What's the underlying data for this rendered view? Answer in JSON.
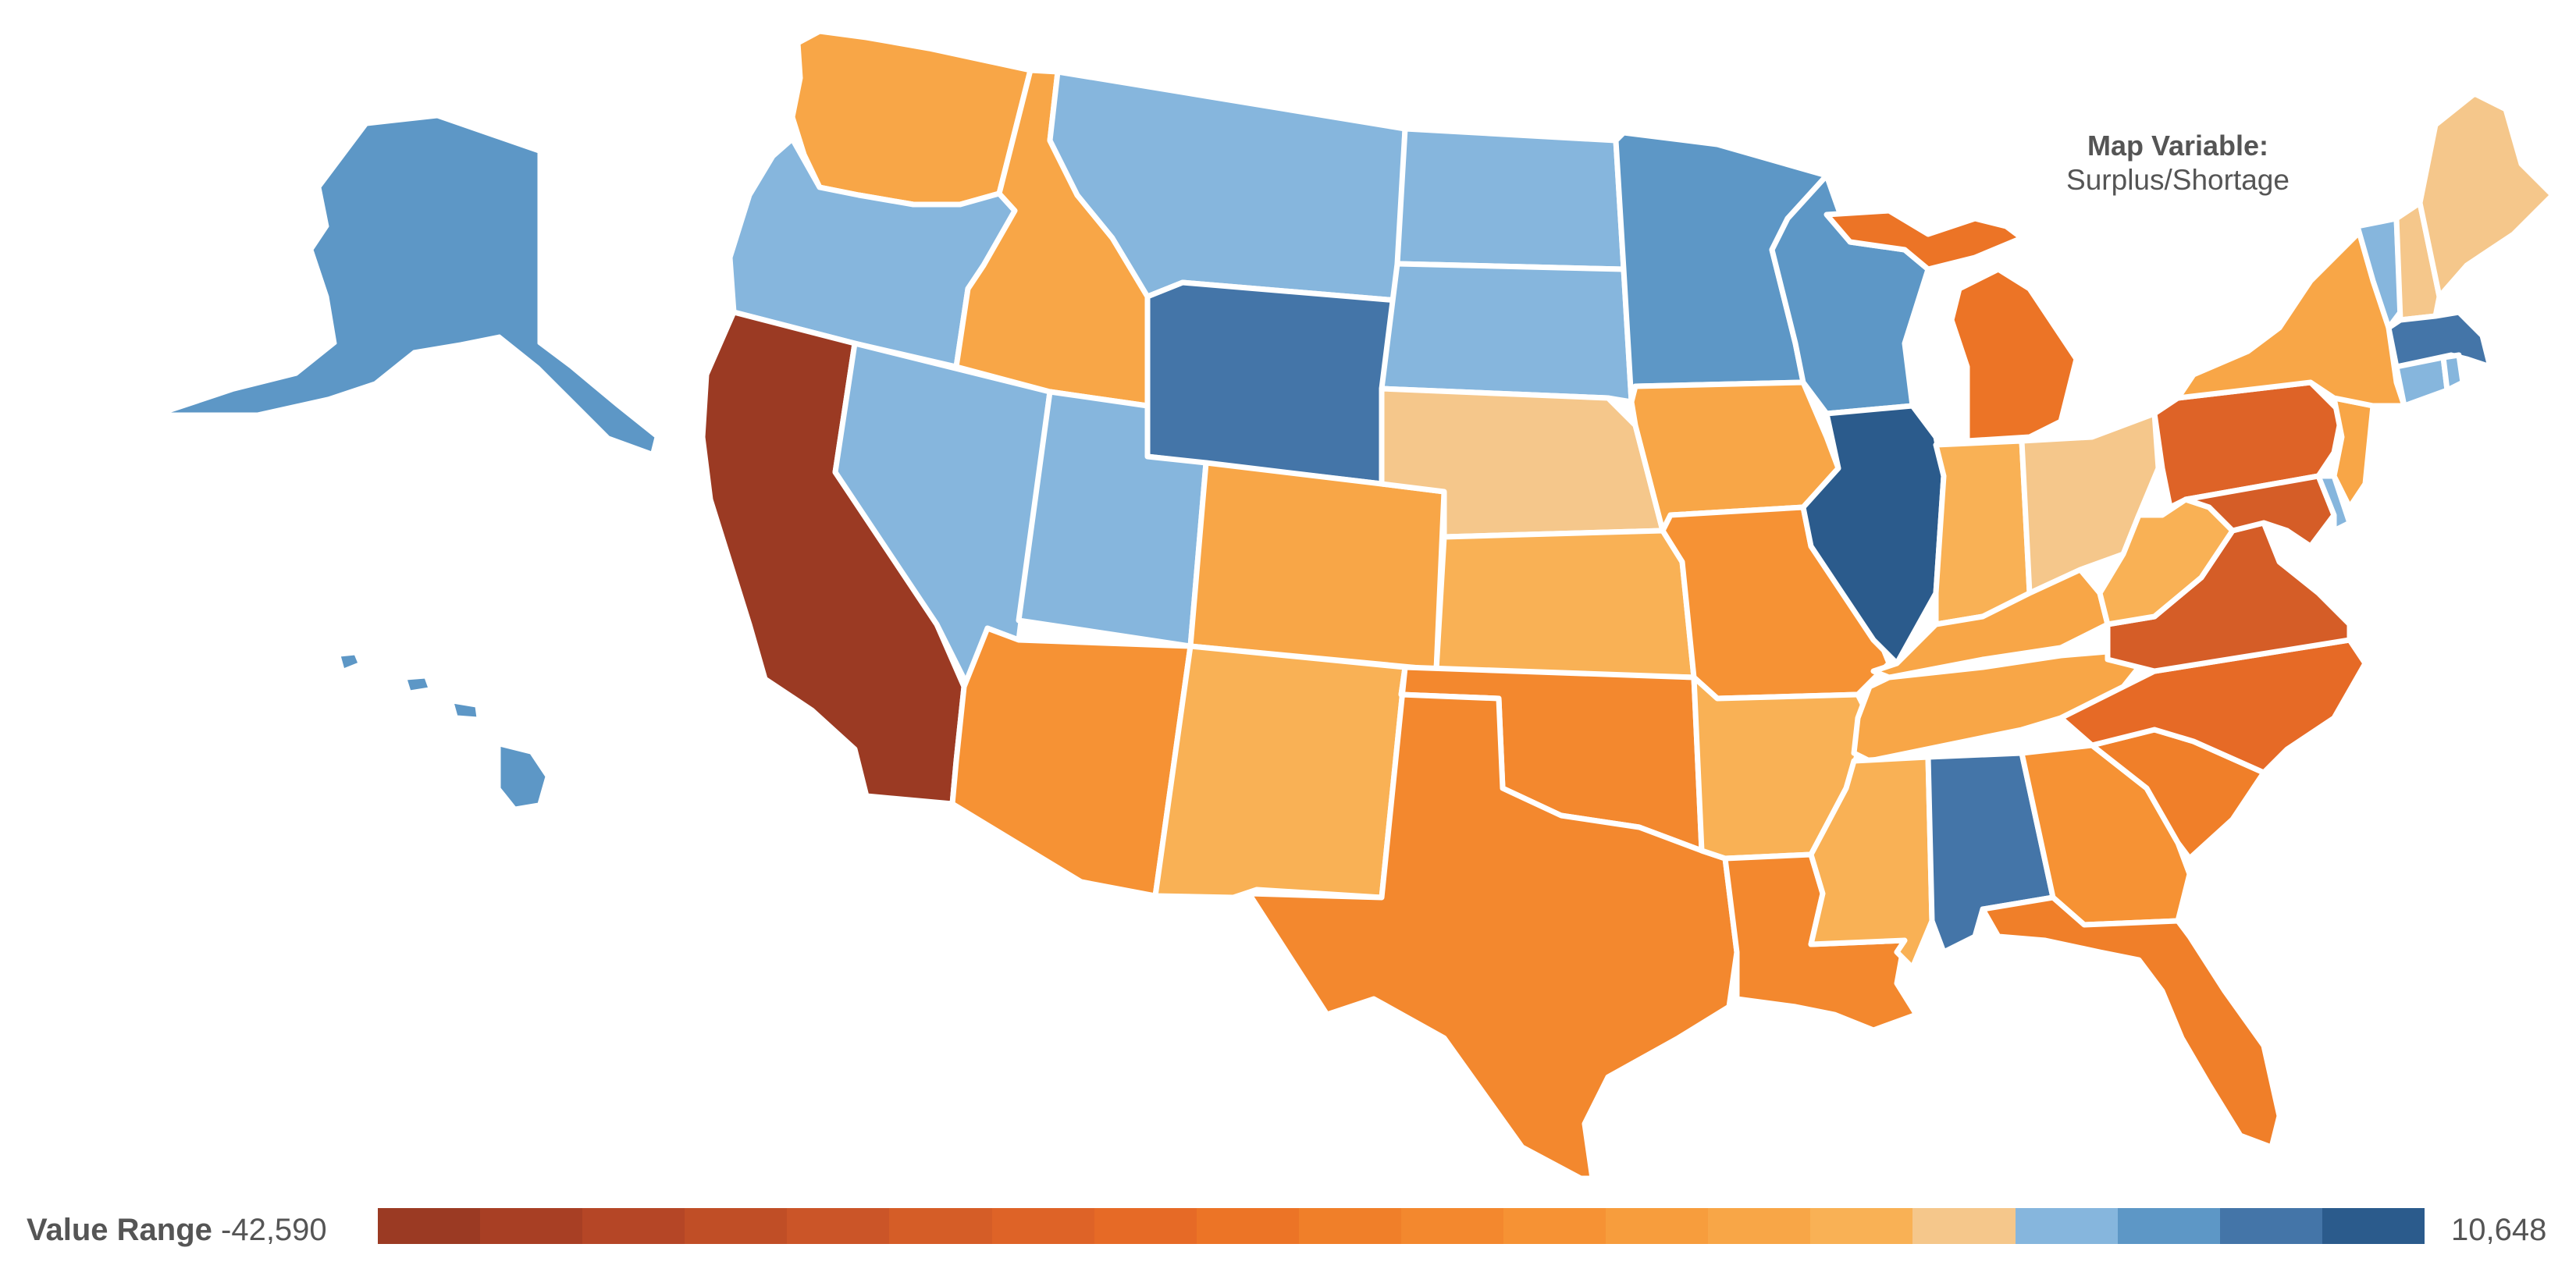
{
  "map": {
    "variable_title": "Map Variable:",
    "variable_name": "Surplus/Shortage"
  },
  "legend": {
    "label": "Value Range",
    "min": "-42,590",
    "max": "10,648",
    "colors": [
      "#9b3a23",
      "#a83f24",
      "#b54626",
      "#c04e26",
      "#cb5528",
      "#d55d27",
      "#de6327",
      "#e66a26",
      "#ec7426",
      "#f07f29",
      "#f3882e",
      "#f69234",
      "#f79d3d",
      "#f8a647",
      "#f9b155",
      "#f5c78b",
      "#86b6dd",
      "#5d97c6",
      "#4475a8",
      "#2b5b8c"
    ]
  },
  "states": [
    {
      "name": "WA",
      "color": "#f8a647"
    },
    {
      "name": "OR",
      "color": "#86b6dd"
    },
    {
      "name": "CA",
      "color": "#9b3a23"
    },
    {
      "name": "NV",
      "color": "#86b6dd"
    },
    {
      "name": "ID",
      "color": "#f8a647"
    },
    {
      "name": "MT",
      "color": "#86b6dd"
    },
    {
      "name": "WY",
      "color": "#4475a8"
    },
    {
      "name": "UT",
      "color": "#86b6dd"
    },
    {
      "name": "AZ",
      "color": "#f69234"
    },
    {
      "name": "CO",
      "color": "#f8a647"
    },
    {
      "name": "NM",
      "color": "#f9b155"
    },
    {
      "name": "ND",
      "color": "#86b6dd"
    },
    {
      "name": "SD",
      "color": "#86b6dd"
    },
    {
      "name": "NE",
      "color": "#f5c78b"
    },
    {
      "name": "KS",
      "color": "#f9b155"
    },
    {
      "name": "OK",
      "color": "#f3882e"
    },
    {
      "name": "TX",
      "color": "#f3882e"
    },
    {
      "name": "MN",
      "color": "#5d97c6"
    },
    {
      "name": "IA",
      "color": "#f8a647"
    },
    {
      "name": "MO",
      "color": "#f69234"
    },
    {
      "name": "AR",
      "color": "#f9b155"
    },
    {
      "name": "LA",
      "color": "#f3882e"
    },
    {
      "name": "WI",
      "color": "#5d97c6"
    },
    {
      "name": "IL",
      "color": "#2b5b8c"
    },
    {
      "name": "MI",
      "color": "#ec7426"
    },
    {
      "name": "IN",
      "color": "#f9b155"
    },
    {
      "name": "OH",
      "color": "#f5c78b"
    },
    {
      "name": "KY",
      "color": "#f8a647"
    },
    {
      "name": "TN",
      "color": "#f8a647"
    },
    {
      "name": "MS",
      "color": "#f9b155"
    },
    {
      "name": "AL",
      "color": "#4475a8"
    },
    {
      "name": "GA",
      "color": "#f69234"
    },
    {
      "name": "FL",
      "color": "#f07f29"
    },
    {
      "name": "SC",
      "color": "#f07f29"
    },
    {
      "name": "NC",
      "color": "#e66a26"
    },
    {
      "name": "VA",
      "color": "#d55d27"
    },
    {
      "name": "WV",
      "color": "#f9b155"
    },
    {
      "name": "PA",
      "color": "#de6327"
    },
    {
      "name": "NY",
      "color": "#f8a647"
    },
    {
      "name": "VT",
      "color": "#86b6dd"
    },
    {
      "name": "NH",
      "color": "#f5c78b"
    },
    {
      "name": "ME",
      "color": "#f5c78b"
    },
    {
      "name": "MA",
      "color": "#4475a8"
    },
    {
      "name": "CT",
      "color": "#86b6dd"
    },
    {
      "name": "RI",
      "color": "#86b6dd"
    },
    {
      "name": "NJ",
      "color": "#f8a647"
    },
    {
      "name": "DE",
      "color": "#86b6dd"
    },
    {
      "name": "MD",
      "color": "#d55d27"
    },
    {
      "name": "AK",
      "color": "#5d97c6"
    },
    {
      "name": "HI",
      "color": "#5d97c6"
    }
  ]
}
